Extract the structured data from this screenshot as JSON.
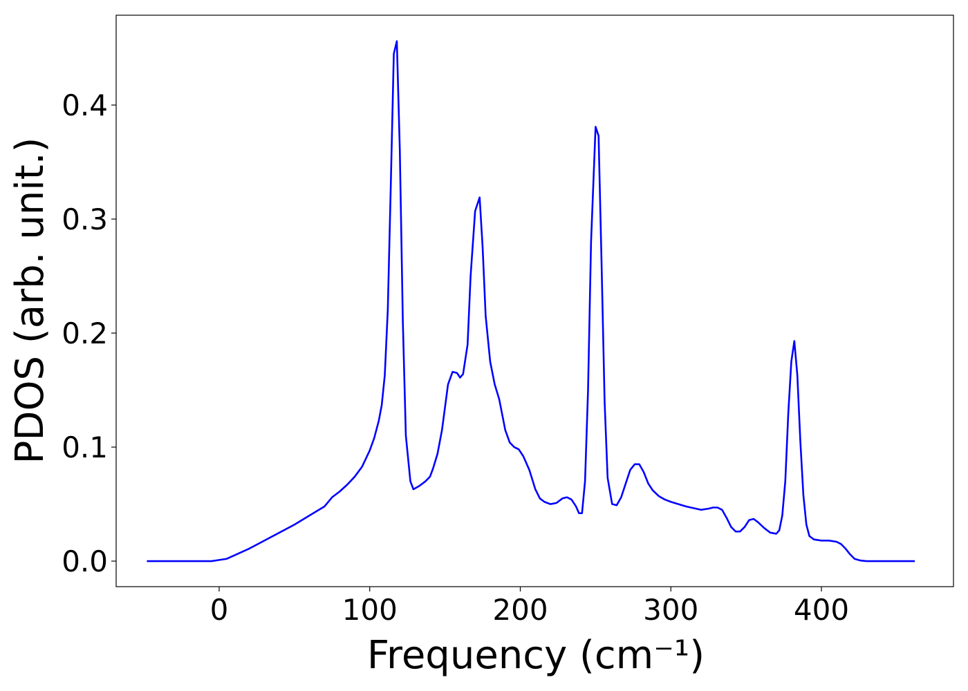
{
  "chart_data": {
    "type": "line",
    "xlabel": "Frequency (cm⁻¹)",
    "ylabel": "PDOS (arb. unit.)",
    "xlim": [
      -68.4,
      487.7
    ],
    "ylim": [
      -0.0224,
      0.4788
    ],
    "xticks": [
      0,
      100,
      200,
      300,
      400
    ],
    "yticks": [
      {
        "value": 0,
        "label": "0.0"
      },
      0.1,
      0.2,
      0.3,
      0.4
    ],
    "grid": false,
    "series": [
      {
        "name": "PDOS",
        "color": "#0000ff",
        "x": [
          -48,
          -5,
          0,
          5,
          10,
          20,
          30,
          40,
          50,
          60,
          70,
          75,
          80,
          85,
          90,
          95,
          100,
          103,
          106,
          108,
          110,
          112,
          114,
          116,
          118,
          120,
          122,
          124,
          127,
          129,
          133,
          137,
          140,
          142,
          145,
          148,
          150,
          152,
          155,
          158,
          160,
          162,
          165,
          167,
          170,
          173,
          175,
          177,
          180,
          183,
          186,
          190,
          193,
          196,
          199,
          202,
          206,
          210,
          213,
          216,
          220,
          224,
          228,
          231,
          234,
          237,
          239,
          241,
          243,
          245,
          247,
          250,
          252,
          254,
          256,
          258,
          261,
          264,
          267,
          270,
          273,
          276,
          279,
          282,
          285,
          288,
          292,
          296,
          300,
          310,
          320,
          325,
          328,
          331,
          334,
          337,
          340,
          343,
          346,
          349,
          352,
          355,
          358,
          362,
          366,
          370,
          372,
          374,
          376,
          378,
          380,
          382,
          384,
          386,
          388,
          390,
          392,
          395,
          400,
          405,
          410,
          413,
          416,
          419,
          422,
          426,
          430,
          462
        ],
        "values": [
          0,
          0,
          0.001,
          0.002,
          0.005,
          0.011,
          0.018,
          0.025,
          0.032,
          0.04,
          0.048,
          0.056,
          0.061,
          0.067,
          0.074,
          0.083,
          0.097,
          0.108,
          0.123,
          0.137,
          0.163,
          0.22,
          0.33,
          0.445,
          0.456,
          0.36,
          0.21,
          0.11,
          0.07,
          0.063,
          0.066,
          0.07,
          0.074,
          0.081,
          0.094,
          0.115,
          0.135,
          0.155,
          0.166,
          0.165,
          0.161,
          0.164,
          0.19,
          0.25,
          0.307,
          0.319,
          0.275,
          0.215,
          0.175,
          0.155,
          0.142,
          0.115,
          0.104,
          0.1,
          0.098,
          0.092,
          0.08,
          0.063,
          0.055,
          0.052,
          0.05,
          0.051,
          0.055,
          0.056,
          0.054,
          0.048,
          0.042,
          0.042,
          0.07,
          0.15,
          0.28,
          0.381,
          0.373,
          0.26,
          0.14,
          0.073,
          0.05,
          0.049,
          0.056,
          0.068,
          0.08,
          0.085,
          0.085,
          0.078,
          0.068,
          0.062,
          0.057,
          0.054,
          0.052,
          0.048,
          0.045,
          0.046,
          0.047,
          0.047,
          0.045,
          0.038,
          0.03,
          0.026,
          0.026,
          0.03,
          0.036,
          0.037,
          0.034,
          0.029,
          0.025,
          0.024,
          0.027,
          0.04,
          0.07,
          0.13,
          0.175,
          0.193,
          0.163,
          0.105,
          0.058,
          0.032,
          0.022,
          0.019,
          0.018,
          0.018,
          0.017,
          0.015,
          0.011,
          0.006,
          0.002,
          0.0005,
          0,
          0
        ]
      }
    ]
  }
}
